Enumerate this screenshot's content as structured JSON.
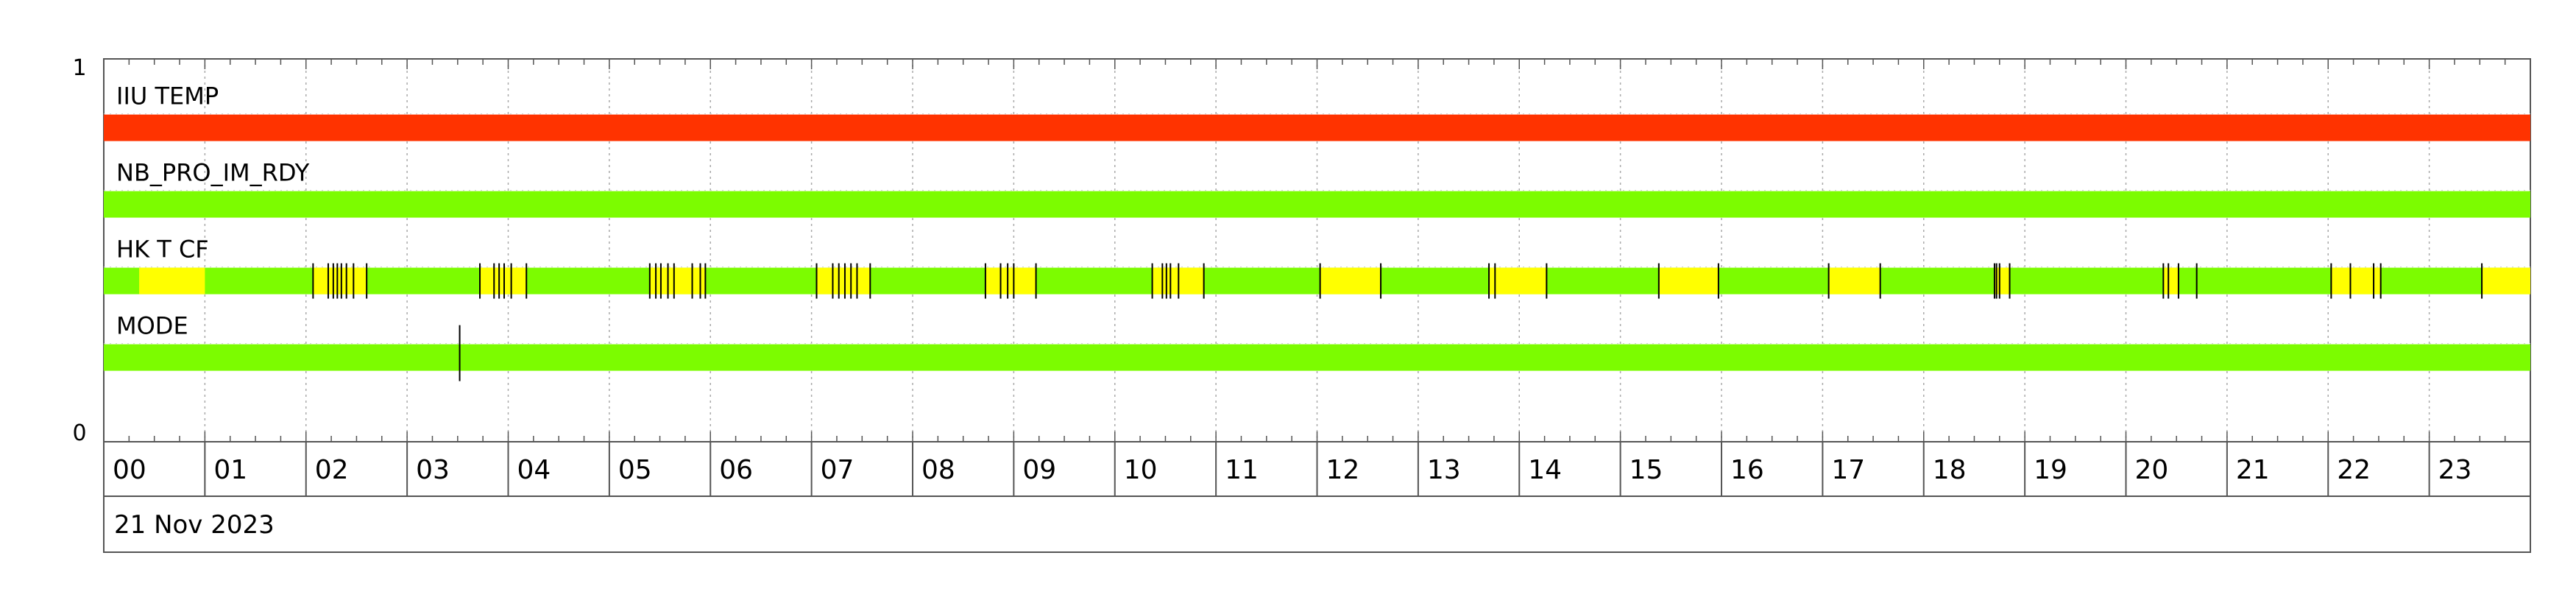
{
  "chart_data": {
    "type": "timeline",
    "ylim": [
      0,
      1
    ],
    "y_ticks": [
      "1",
      "0"
    ],
    "x_ticks": [
      "00",
      "01",
      "02",
      "03",
      "04",
      "05",
      "06",
      "07",
      "08",
      "09",
      "10",
      "11",
      "12",
      "13",
      "14",
      "15",
      "16",
      "17",
      "18",
      "19",
      "20",
      "21",
      "22",
      "23"
    ],
    "date": "21 Nov 2023",
    "x_range_hours": [
      0,
      24
    ],
    "grid": true,
    "colors": {
      "green": "#7cfc00",
      "yellow": "#ffff00",
      "red": "#ff3300",
      "tick": "#000000"
    },
    "series": [
      {
        "name": "IIU TEMP",
        "y": 0.82,
        "base_color": "red",
        "segments": [],
        "marks": []
      },
      {
        "name": "NB_PRO_IM_RDY",
        "y": 0.62,
        "base_color": "green",
        "segments": [],
        "marks": []
      },
      {
        "name": "HK T CF",
        "y": 0.42,
        "base_color": "green",
        "segments": [
          {
            "start": 0.35,
            "end": 1.0,
            "color": "yellow"
          },
          {
            "start": 2.07,
            "end": 2.6,
            "color": "yellow"
          },
          {
            "start": 3.72,
            "end": 4.18,
            "color": "yellow"
          },
          {
            "start": 5.4,
            "end": 5.95,
            "color": "yellow"
          },
          {
            "start": 7.05,
            "end": 7.58,
            "color": "yellow"
          },
          {
            "start": 8.72,
            "end": 9.22,
            "color": "yellow"
          },
          {
            "start": 10.37,
            "end": 10.88,
            "color": "yellow"
          },
          {
            "start": 12.03,
            "end": 12.63,
            "color": "yellow"
          },
          {
            "start": 13.7,
            "end": 14.27,
            "color": "yellow"
          },
          {
            "start": 15.38,
            "end": 15.97,
            "color": "yellow"
          },
          {
            "start": 17.06,
            "end": 17.57,
            "color": "yellow"
          },
          {
            "start": 18.7,
            "end": 18.85,
            "color": "yellow"
          },
          {
            "start": 20.37,
            "end": 20.52,
            "color": "yellow"
          },
          {
            "start": 22.03,
            "end": 22.52,
            "color": "yellow"
          },
          {
            "start": 23.52,
            "end": 24.0,
            "color": "yellow"
          }
        ],
        "marks": [
          2.07,
          2.22,
          2.27,
          2.31,
          2.35,
          2.4,
          2.47,
          2.6,
          3.72,
          3.86,
          3.91,
          3.96,
          4.03,
          4.18,
          5.4,
          5.46,
          5.51,
          5.58,
          5.64,
          5.82,
          5.9,
          5.95,
          7.05,
          7.21,
          7.27,
          7.33,
          7.39,
          7.45,
          7.58,
          8.72,
          8.87,
          8.94,
          9.0,
          9.22,
          10.37,
          10.47,
          10.51,
          10.55,
          10.63,
          10.88,
          12.03,
          12.63,
          13.7,
          13.76,
          14.27,
          15.38,
          15.97,
          17.06,
          17.57,
          18.7,
          18.72,
          18.75,
          18.85,
          20.37,
          20.42,
          20.52,
          20.7,
          22.03,
          22.22,
          22.45,
          22.52,
          23.52
        ]
      },
      {
        "name": "MODE",
        "y": 0.22,
        "base_color": "green",
        "segments": [],
        "marks": [
          3.52
        ]
      }
    ]
  }
}
